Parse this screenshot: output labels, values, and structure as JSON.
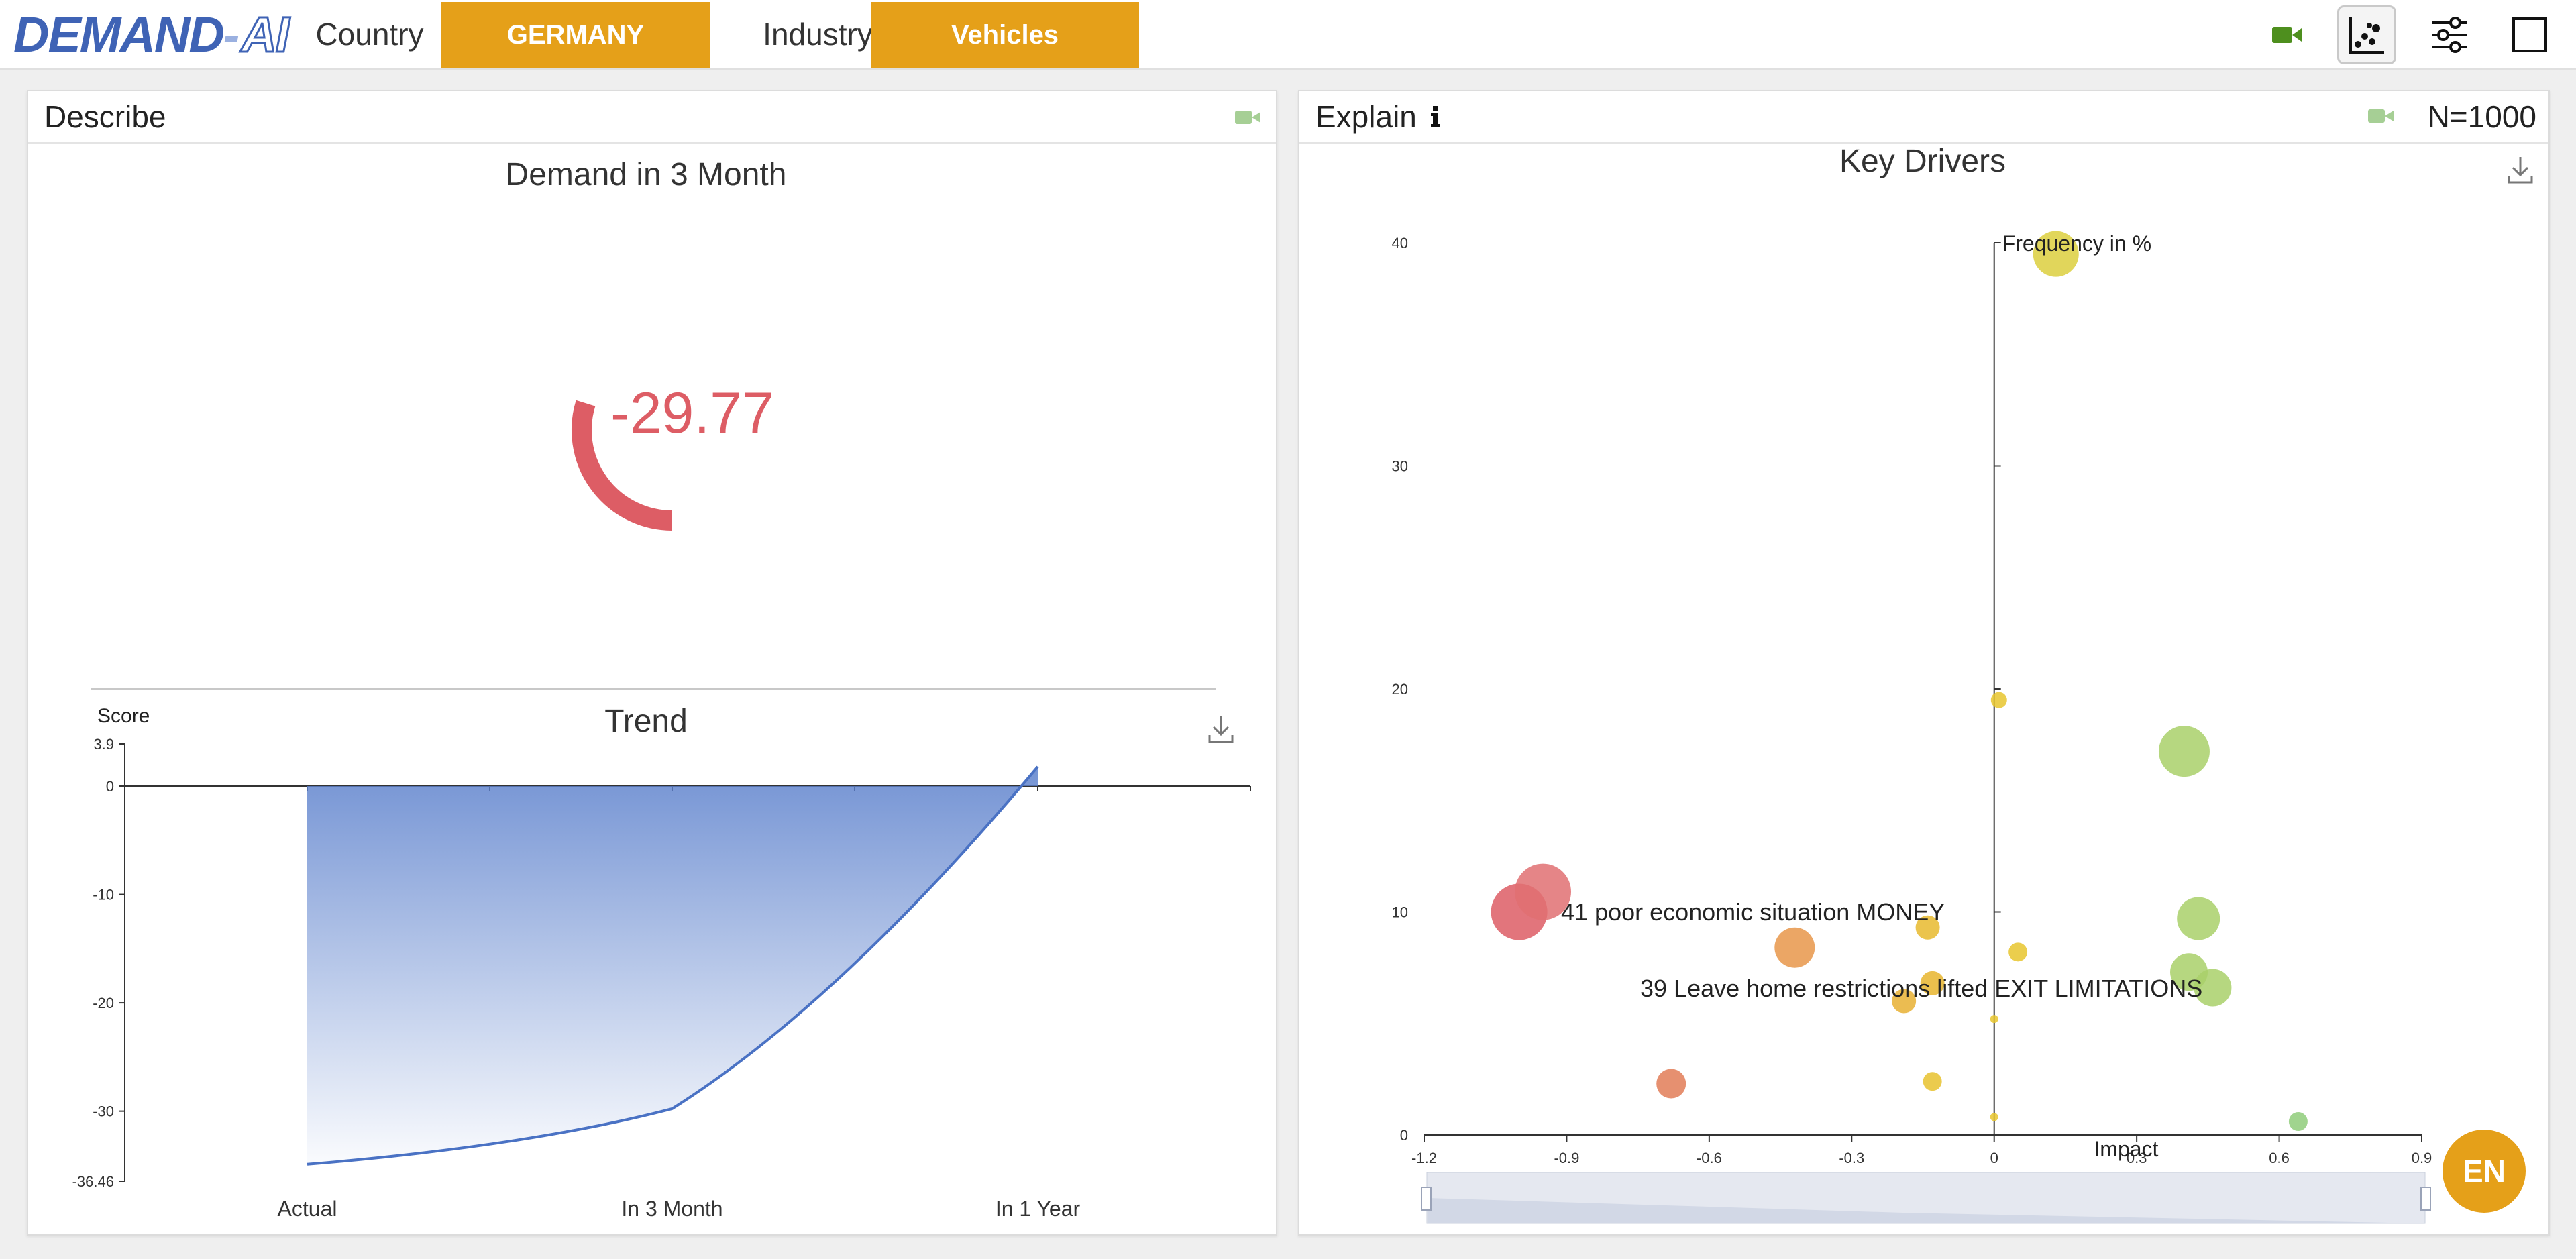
{
  "app": {
    "logo_main": "DEMAND",
    "logo_sep": "-",
    "logo_suffix": "AI",
    "country_label": "Country",
    "country_value": "GERMANY",
    "industry_label": "Industry",
    "industry_value": "Vehicles"
  },
  "toolbar_icons": [
    "video-camera-icon",
    "scatter-chart-icon",
    "sliders-icon",
    "fullscreen-icon"
  ],
  "colors": {
    "accent": "#e5a019",
    "logo_blue": "#3f63b5",
    "negative": "#dd5d65",
    "trend_blue": "#4a72c4",
    "camera_green": "#5a9e3a"
  },
  "describe": {
    "title": "Describe",
    "gauge_title": "Demand in 3 Month",
    "gauge_value": "-29.77",
    "gauge_number": -29.77
  },
  "trend": {
    "title": "Trend",
    "y_title": "Score",
    "y_max_label": "3.9",
    "y_min_label": "-36.46"
  },
  "explain": {
    "title": "Explain",
    "n_label": "N=1000",
    "chart_title": "Key Drivers",
    "y_title": "Frequency in %",
    "x_title": "Impact",
    "labels": [
      "41 poor economic situation MONEY",
      "39 Leave home restrictions lifted EXIT LIMITATIONS"
    ]
  },
  "language_badge": "EN",
  "chart_data": [
    {
      "type": "area",
      "title": "Trend",
      "ylabel": "Score",
      "categories": [
        "Actual",
        "In 3 Month",
        "In 1 Year"
      ],
      "x": [
        0,
        1,
        2
      ],
      "values": [
        -34.9,
        -29.77,
        1.8
      ],
      "ylim": [
        -36.46,
        3.9
      ],
      "yticks": [
        3.9,
        0,
        -10,
        -20,
        -30,
        -36.46
      ],
      "grid": false
    },
    {
      "type": "scatter",
      "title": "Key Drivers",
      "xlabel": "Impact",
      "ylabel": "Frequency in %",
      "xlim": [
        -1.2,
        0.9
      ],
      "ylim": [
        0,
        40
      ],
      "xticks": [
        -1.2,
        -0.9,
        -0.6,
        -0.3,
        0,
        0.3,
        0.6,
        0.9
      ],
      "yticks": [
        0,
        10,
        20,
        30,
        40
      ],
      "grid": false,
      "points": [
        {
          "x": -1.0,
          "y": 10.0,
          "size": 21,
          "color": "#dd5d65"
        },
        {
          "x": -0.95,
          "y": 10.9,
          "size": 21,
          "color": "#e07072"
        },
        {
          "x": -0.42,
          "y": 8.4,
          "size": 15,
          "color": "#e8974a"
        },
        {
          "x": -0.68,
          "y": 2.3,
          "size": 11,
          "color": "#e27d57"
        },
        {
          "x": -0.14,
          "y": 9.3,
          "size": 9,
          "color": "#e8ba2e"
        },
        {
          "x": -0.13,
          "y": 6.8,
          "size": 9,
          "color": "#e8b52e"
        },
        {
          "x": -0.19,
          "y": 6.0,
          "size": 9,
          "color": "#e8b032"
        },
        {
          "x": -0.13,
          "y": 2.4,
          "size": 7,
          "color": "#e8c22e"
        },
        {
          "x": 0.01,
          "y": 19.5,
          "size": 6,
          "color": "#e8c62e"
        },
        {
          "x": 0.05,
          "y": 8.2,
          "size": 7,
          "color": "#e8c62e"
        },
        {
          "x": 0.0,
          "y": 5.2,
          "size": 3,
          "color": "#e8c62e"
        },
        {
          "x": 0.0,
          "y": 0.8,
          "size": 3,
          "color": "#e8c62e"
        },
        {
          "x": 0.13,
          "y": 39.5,
          "size": 17,
          "color": "#dccf3e"
        },
        {
          "x": 0.4,
          "y": 17.2,
          "size": 19,
          "color": "#a9d06a"
        },
        {
          "x": 0.43,
          "y": 9.7,
          "size": 16,
          "color": "#a9d06a"
        },
        {
          "x": 0.41,
          "y": 7.3,
          "size": 14,
          "color": "#a9d06a"
        },
        {
          "x": 0.46,
          "y": 6.6,
          "size": 14,
          "color": "#a9d06a"
        },
        {
          "x": 0.64,
          "y": 0.6,
          "size": 7,
          "color": "#8fcc7a"
        }
      ]
    }
  ]
}
